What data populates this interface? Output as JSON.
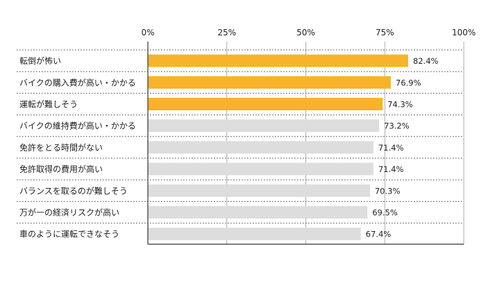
{
  "chart_data": {
    "type": "bar",
    "orientation": "horizontal",
    "categories": [
      "転倒が怖い",
      "バイクの購入費が高い・かかる",
      "運転が難しそう",
      "バイクの維持費が高い・かかる",
      "免許をとる時間がない",
      "免許取得の費用が高い",
      "バランスを取るのが難しそう",
      "万が一の経済リスクが高い",
      "車のように運転できなそう"
    ],
    "values": [
      82.4,
      76.9,
      74.3,
      73.2,
      71.4,
      71.4,
      70.3,
      69.5,
      67.4
    ],
    "value_labels": [
      "82.4%",
      "76.9%",
      "74.3%",
      "73.2%",
      "71.4%",
      "71.4%",
      "70.3%",
      "69.5%",
      "67.4%"
    ],
    "highlighted": [
      true,
      true,
      true,
      false,
      false,
      false,
      false,
      false,
      false
    ],
    "xlim": [
      0,
      100
    ],
    "xticks": [
      0,
      25,
      50,
      75,
      100
    ],
    "xtick_labels": [
      "0%",
      "25%",
      "50%",
      "75%",
      "100%"
    ],
    "title": "",
    "xlabel": "",
    "ylabel": "",
    "grid": true,
    "legend": "none",
    "colors": {
      "highlight": "#F7B32B",
      "normal": "#DDDDDD",
      "axis": "#333333",
      "grid": "#999999",
      "text": "#222222"
    }
  }
}
